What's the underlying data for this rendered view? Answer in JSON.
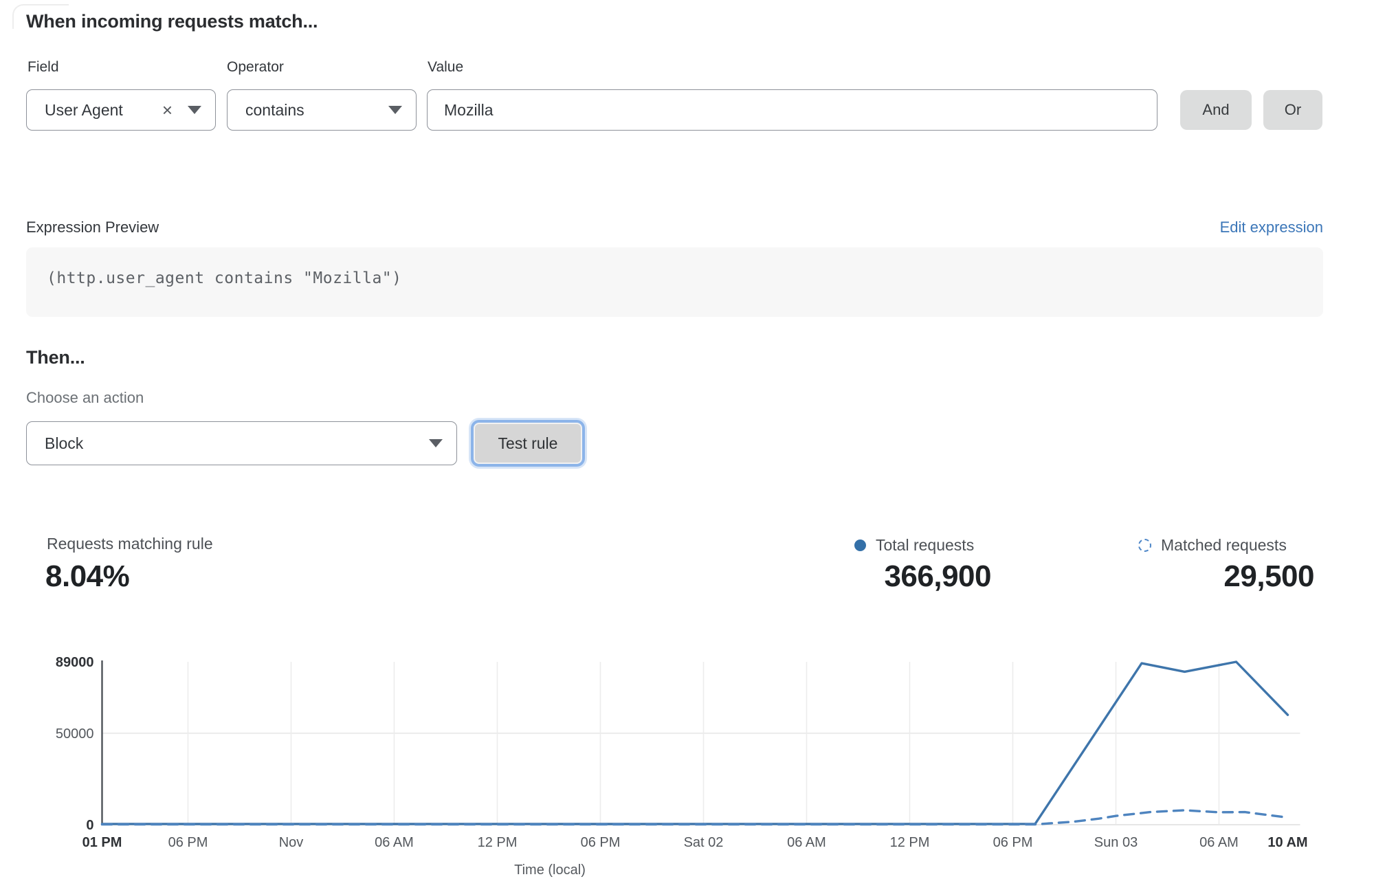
{
  "colors": {
    "solid_line": "#3e75ab",
    "dashed_line": "#4e84bf",
    "legend_dot": "#3470a8",
    "legend_dashed": "#4d86c8",
    "link_blue": "#3b76b8",
    "grid": "#ececec",
    "baseline": "#e6e6e6",
    "axis": "#54585e"
  },
  "rule_builder": {
    "heading": "When incoming requests match...",
    "field": {
      "label": "Field",
      "value": "User Agent",
      "remove_glyph": "×"
    },
    "operator": {
      "label": "Operator",
      "value": "contains"
    },
    "value": {
      "label": "Value",
      "value": "Mozilla"
    },
    "and_label": "And",
    "or_label": "Or"
  },
  "expression": {
    "label": "Expression Preview",
    "edit_link": "Edit expression",
    "code": "(http.user_agent contains \"Mozilla\")"
  },
  "action": {
    "heading": "Then...",
    "label": "Choose an action",
    "value": "Block",
    "test_button": "Test rule"
  },
  "stats": {
    "match_label": "Requests matching rule",
    "match_value": "8.04%",
    "total_label": "Total requests",
    "total_value": "366,900",
    "matched_label": "Matched requests",
    "matched_value": "29,500"
  },
  "chart_data": {
    "type": "line",
    "title": "",
    "xlabel": "Time (local)",
    "ylabel": "",
    "ylim": [
      0,
      89000
    ],
    "x_unit_hours": "offset from Thu 01 PM (Oct 31) through Sun 10 AM (Nov 03), 69 h total",
    "x_range_hours": [
      0,
      69
    ],
    "grid": "vertical line at each interior x tick; horizontal line at 50000; light baseline at 0",
    "legend_position": "top-right above chart (paired with stat values)",
    "y_ticks": [
      {
        "v": 0,
        "label": "0",
        "bold": true
      },
      {
        "v": 50000,
        "label": "50000",
        "bold": false
      },
      {
        "v": 89000,
        "label": "89000",
        "bold": true
      }
    ],
    "x_ticks": [
      {
        "t": 0,
        "label": "01 PM",
        "bold": true
      },
      {
        "t": 5,
        "label": "06 PM",
        "bold": false
      },
      {
        "t": 11,
        "label": "Nov",
        "bold": false
      },
      {
        "t": 17,
        "label": "06 AM",
        "bold": false
      },
      {
        "t": 23,
        "label": "12 PM",
        "bold": false
      },
      {
        "t": 29,
        "label": "06 PM",
        "bold": false
      },
      {
        "t": 35,
        "label": "Sat 02",
        "bold": false
      },
      {
        "t": 41,
        "label": "06 AM",
        "bold": false
      },
      {
        "t": 47,
        "label": "12 PM",
        "bold": false
      },
      {
        "t": 53,
        "label": "06 PM",
        "bold": false
      },
      {
        "t": 59,
        "label": "Sun 03",
        "bold": false
      },
      {
        "t": 65,
        "label": "06 AM",
        "bold": false
      },
      {
        "t": 69,
        "label": "10 AM",
        "bold": true
      }
    ],
    "series": [
      {
        "name": "Total requests",
        "style": "solid",
        "color": "#3e75ab",
        "points": [
          [
            0,
            400
          ],
          [
            5,
            380
          ],
          [
            11,
            400
          ],
          [
            17,
            360
          ],
          [
            23,
            400
          ],
          [
            29,
            380
          ],
          [
            35,
            400
          ],
          [
            41,
            370
          ],
          [
            47,
            400
          ],
          [
            52,
            400
          ],
          [
            54.3,
            450
          ],
          [
            60.5,
            88200
          ],
          [
            63,
            83600
          ],
          [
            66,
            89000
          ],
          [
            69,
            60000
          ]
        ]
      },
      {
        "name": "Matched requests",
        "style": "dashed",
        "color": "#4e84bf",
        "points": [
          [
            0,
            150
          ],
          [
            8,
            150
          ],
          [
            16,
            150
          ],
          [
            24,
            150
          ],
          [
            32,
            150
          ],
          [
            40,
            150
          ],
          [
            48,
            150
          ],
          [
            54.3,
            200
          ],
          [
            56.5,
            1600
          ],
          [
            58,
            3300
          ],
          [
            59,
            4800
          ],
          [
            61,
            6900
          ],
          [
            63,
            7900
          ],
          [
            65,
            6800
          ],
          [
            66.5,
            6900
          ],
          [
            69,
            3900
          ]
        ]
      }
    ]
  }
}
